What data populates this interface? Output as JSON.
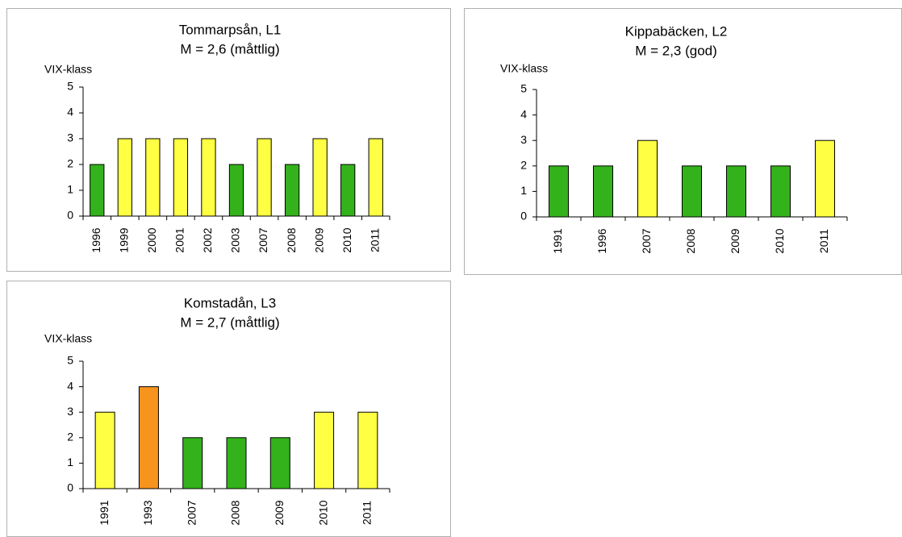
{
  "chart_data": [
    {
      "type": "bar",
      "title": "Tommarpsån, L1",
      "subtitle": "M = 2,6 (måttlig)",
      "ylabel": "VIX-klass",
      "categories": [
        "1996",
        "1999",
        "2000",
        "2001",
        "2002",
        "2003",
        "2007",
        "2008",
        "2009",
        "2010",
        "2011"
      ],
      "values": [
        2,
        3,
        3,
        3,
        3,
        2,
        3,
        2,
        3,
        2,
        3
      ],
      "colors": [
        "#33b21b",
        "#ffff44",
        "#ffff44",
        "#ffff44",
        "#ffff44",
        "#33b21b",
        "#ffff44",
        "#33b21b",
        "#ffff44",
        "#33b21b",
        "#ffff44"
      ],
      "ylim": [
        0,
        5
      ],
      "yticks": [
        0,
        1,
        2,
        3,
        4,
        5
      ],
      "grid": false
    },
    {
      "type": "bar",
      "title": "Kippabäcken, L2",
      "subtitle": "M = 2,3 (god)",
      "ylabel": "VIX-klass",
      "categories": [
        "1991",
        "1996",
        "2007",
        "2008",
        "2009",
        "2010",
        "2011"
      ],
      "values": [
        2,
        2,
        3,
        2,
        2,
        2,
        3
      ],
      "colors": [
        "#33b21b",
        "#33b21b",
        "#ffff44",
        "#33b21b",
        "#33b21b",
        "#33b21b",
        "#ffff44"
      ],
      "ylim": [
        0,
        5
      ],
      "yticks": [
        0,
        1,
        2,
        3,
        4,
        5
      ],
      "grid": false
    },
    {
      "type": "bar",
      "title": "Komstadån, L3",
      "subtitle": "M = 2,7 (måttlig)",
      "ylabel": "VIX-klass",
      "categories": [
        "1991",
        "1993",
        "2007",
        "2008",
        "2009",
        "2010",
        "2011"
      ],
      "values": [
        3,
        4,
        2,
        2,
        2,
        3,
        3
      ],
      "colors": [
        "#ffff44",
        "#f7941d",
        "#33b21b",
        "#33b21b",
        "#33b21b",
        "#ffff44",
        "#ffff44"
      ],
      "ylim": [
        0,
        5
      ],
      "yticks": [
        0,
        1,
        2,
        3,
        4,
        5
      ],
      "grid": false
    }
  ]
}
